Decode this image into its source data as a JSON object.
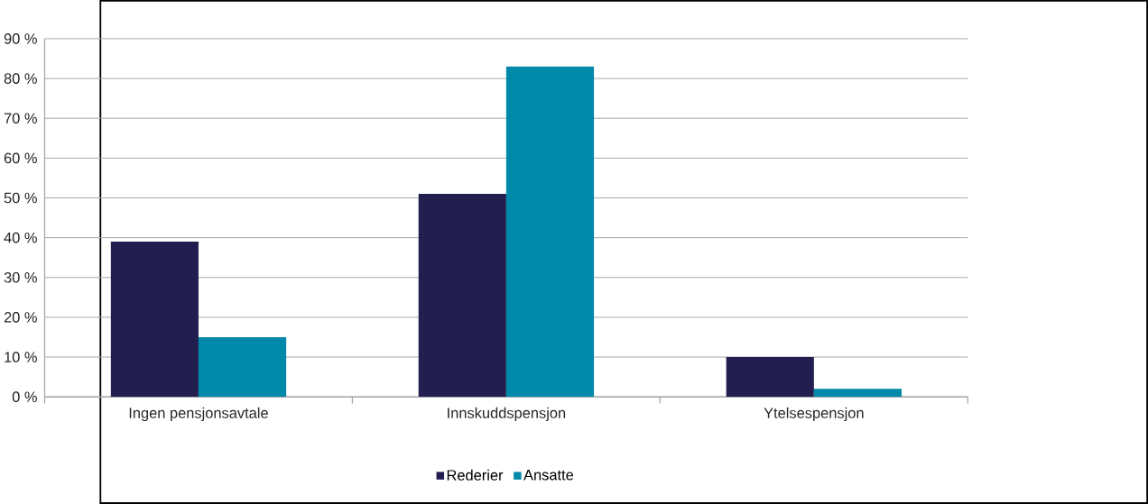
{
  "chart_data": {
    "type": "bar",
    "categories": [
      "Ingen pensjonsavtale",
      "Innskuddspensjon",
      "Ytelsespensjon"
    ],
    "series": [
      {
        "name": "Rederier",
        "color": "#221f50",
        "values": [
          39,
          51,
          10
        ]
      },
      {
        "name": "Ansatte",
        "color": "#0089a8",
        "values": [
          15,
          83,
          2
        ]
      }
    ],
    "ylim": [
      0,
      90
    ],
    "yticks": [
      {
        "value": 0,
        "label": "0 %"
      },
      {
        "value": 10,
        "label": "10 %"
      },
      {
        "value": 20,
        "label": "20 %"
      },
      {
        "value": 30,
        "label": "30 %"
      },
      {
        "value": 40,
        "label": "40 %"
      },
      {
        "value": 50,
        "label": "50 %"
      },
      {
        "value": 60,
        "label": "60 %"
      },
      {
        "value": 70,
        "label": "70 %"
      },
      {
        "value": 80,
        "label": "80 %"
      },
      {
        "value": 90,
        "label": "90 %"
      }
    ],
    "grid": "y",
    "legend": "bottom"
  }
}
